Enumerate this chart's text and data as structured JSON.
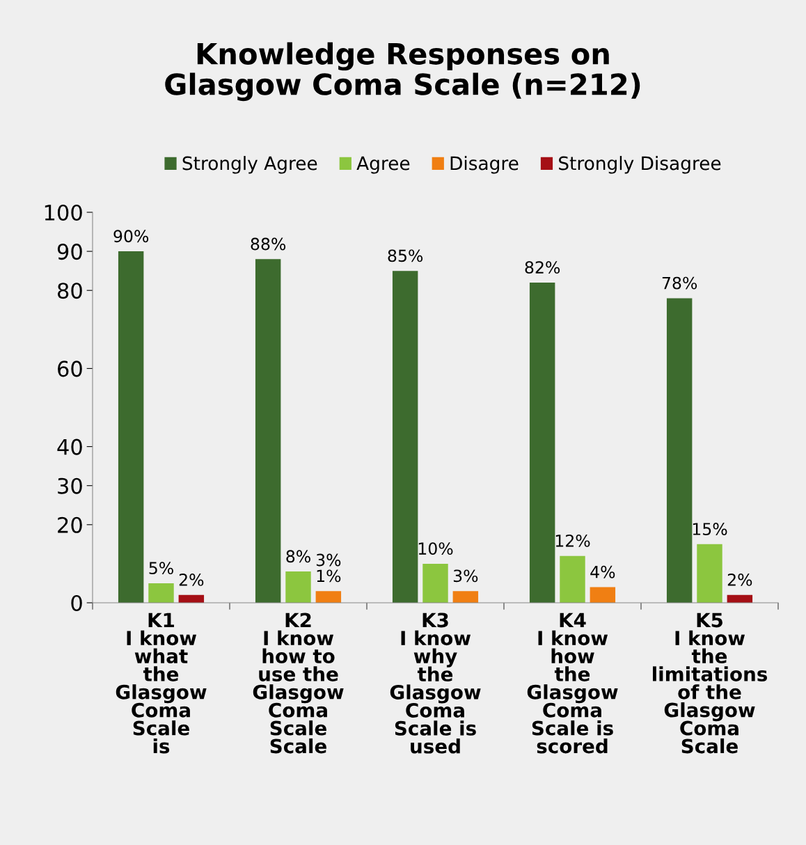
{
  "chart_data": {
    "type": "bar",
    "title": "Knowledge Responses on\nGlasgow Coma Scale (n=212)",
    "categories": [
      "K1\nI know\nwhat\nthe\nGlasgow\nComa\nScale\nis",
      "K2\nI know\nhow to\nuse the\nGlasgow\nComa\nScale\nScale",
      "K3\nI know\nwhy\nthe\nGlasgow\nComa\nScale is\nused",
      "K4\nI know\nhow\nthe\nGlasgow\nComa\nScale is\nscored",
      "K5\nI know\nthe\nlimitations\nof the\nGlasgow\nComa\nScale"
    ],
    "series": [
      {
        "name": "Strongly Agree",
        "color": "#3d6b2e",
        "values": [
          90,
          88,
          85,
          82,
          78
        ],
        "value_labels": [
          "90%",
          "88%",
          "85%",
          "82%",
          "78%"
        ]
      },
      {
        "name": "Agree",
        "color": "#8cc63f",
        "values": [
          5,
          8,
          10,
          12,
          15
        ],
        "value_labels": [
          "5%",
          "8%",
          "10%",
          "12%",
          "15%"
        ]
      },
      {
        "name": "Disagre",
        "color": "#f07f13",
        "values": [
          null,
          3,
          3,
          4,
          null
        ],
        "value_labels": [
          null,
          "3%\n1%",
          "3%",
          "4%",
          null
        ]
      },
      {
        "name": "Strongly Disagree",
        "color": "#a50f15",
        "values": [
          2,
          null,
          null,
          null,
          2
        ],
        "value_labels": [
          "2%",
          null,
          null,
          null,
          "2%"
        ]
      }
    ],
    "ylim": [
      0,
      100
    ],
    "yticks": [
      0,
      20,
      30,
      40,
      60,
      80,
      90,
      100
    ],
    "grid": false,
    "legend": "top"
  }
}
